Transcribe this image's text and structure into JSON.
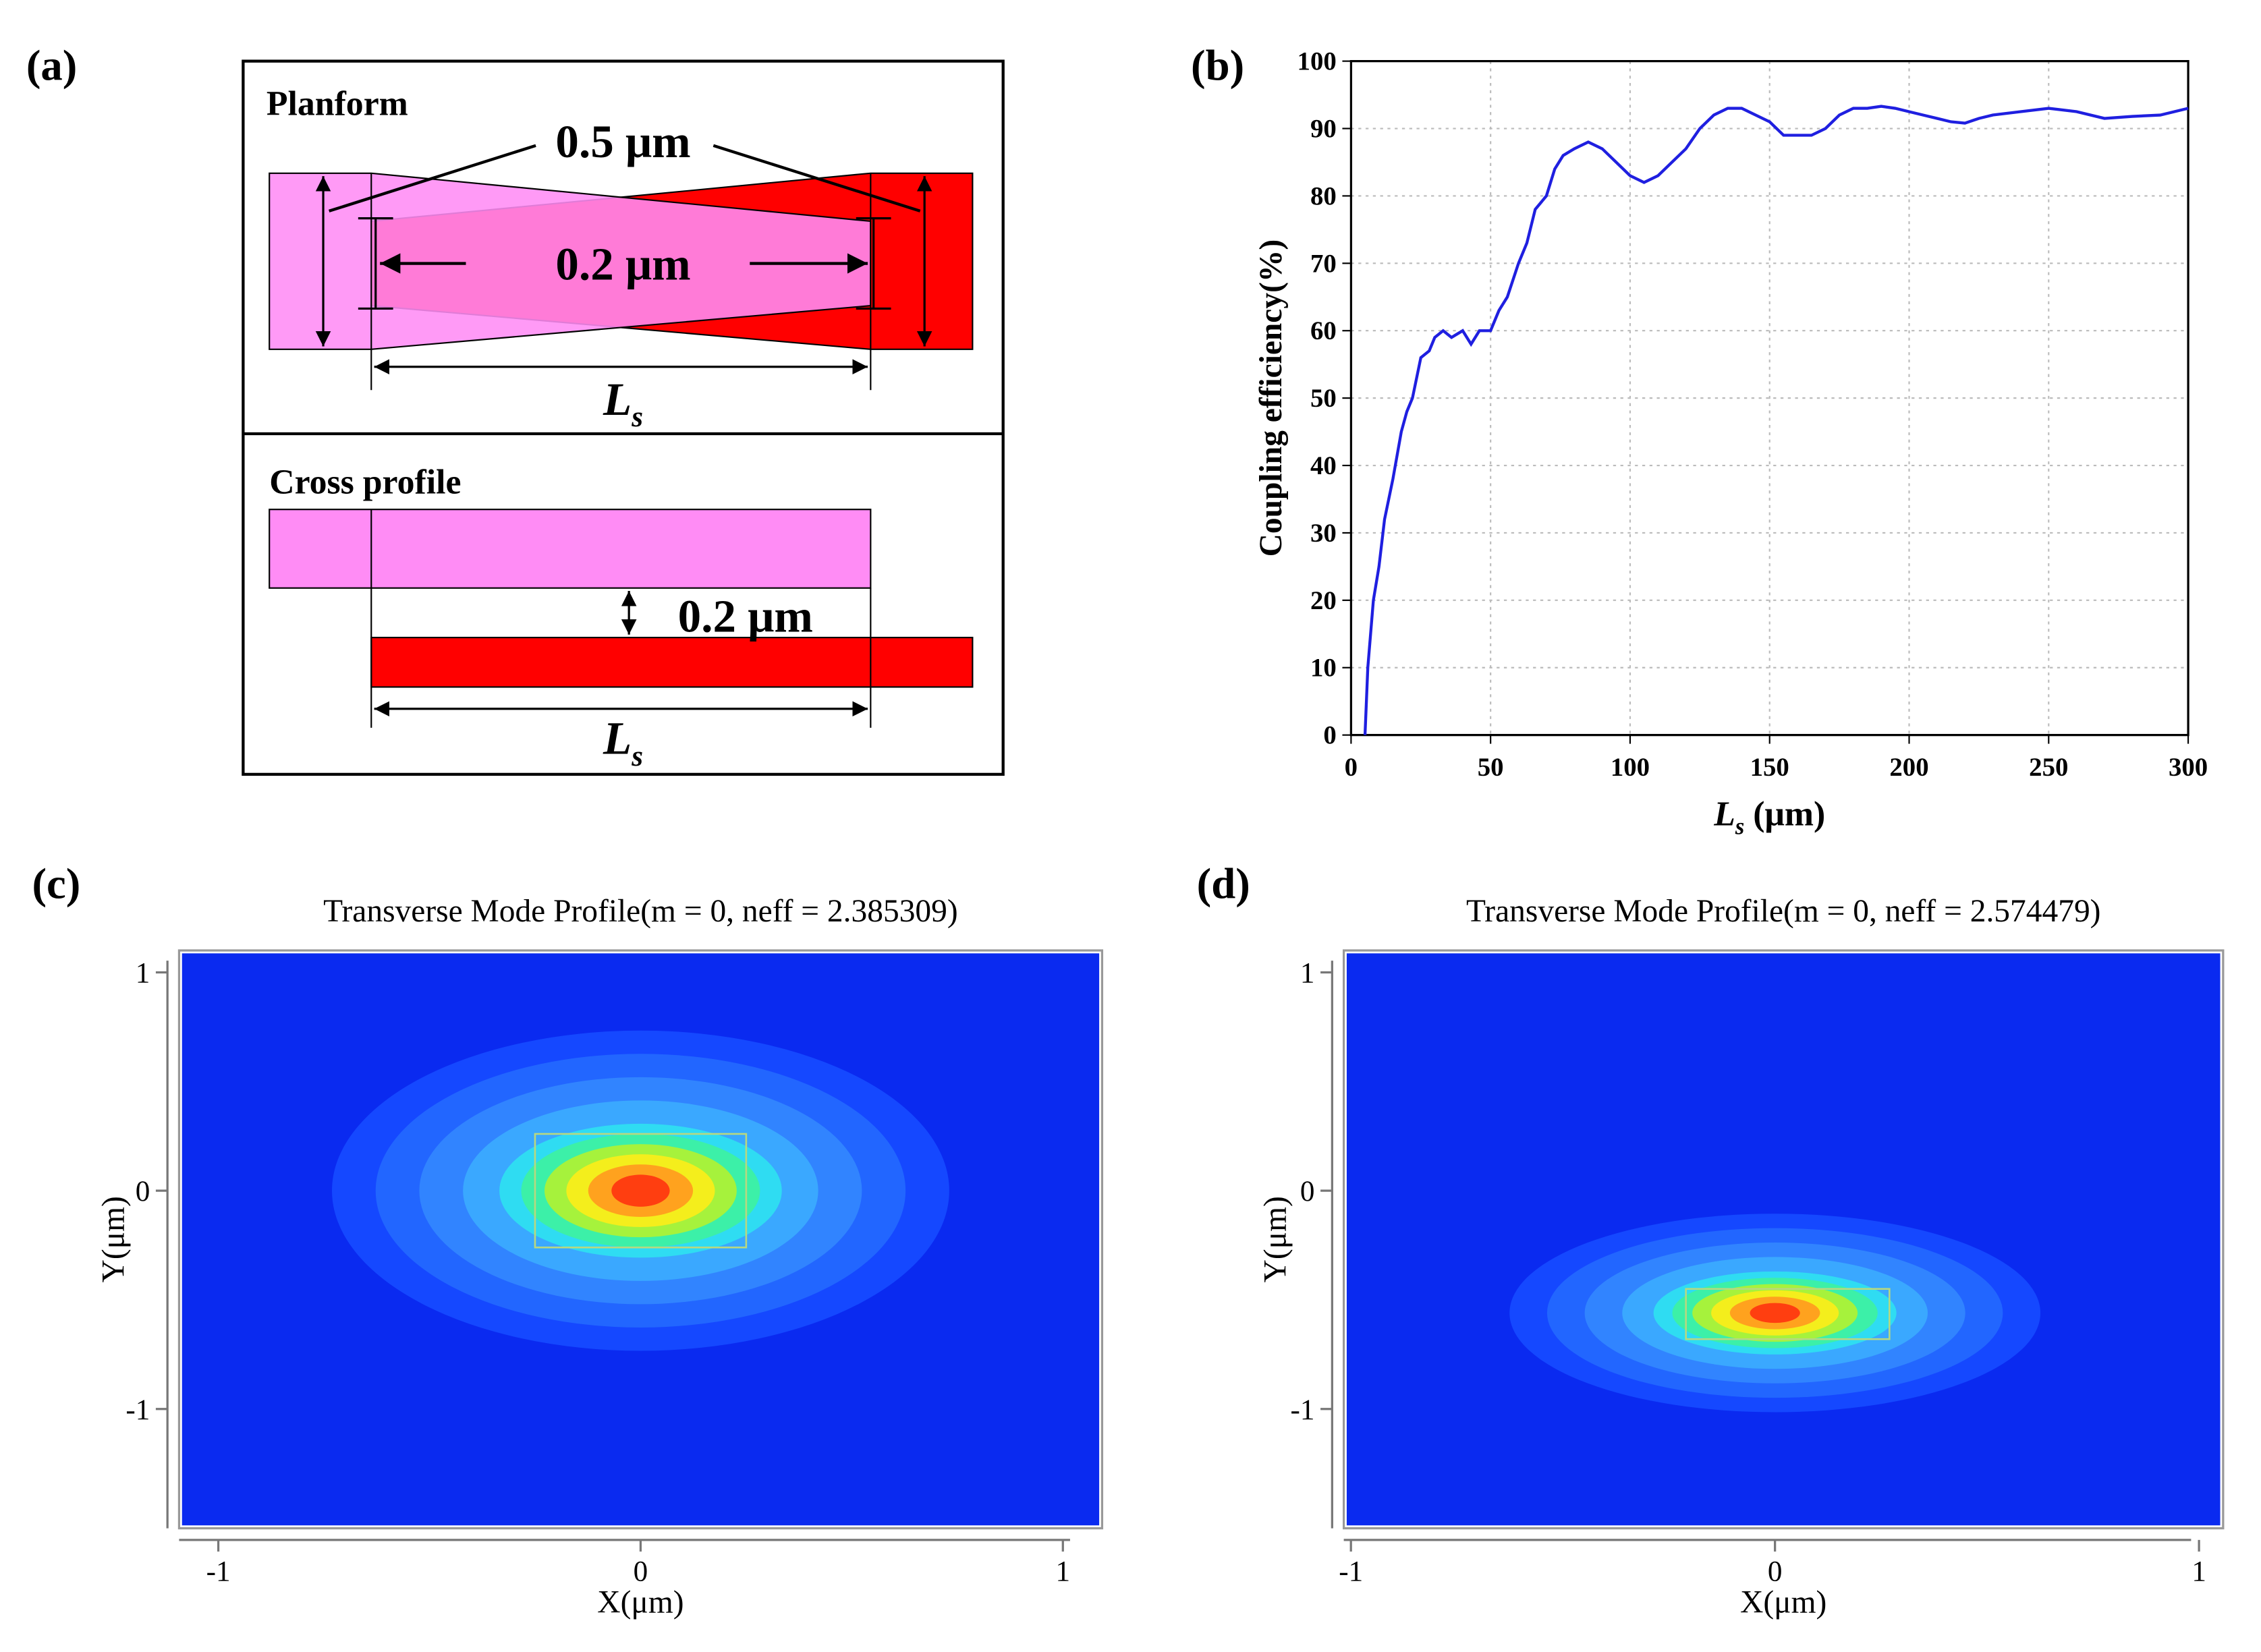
{
  "diagram": {
    "panel_label": "(a)",
    "planform": {
      "title": "Planform",
      "width_label": "0.5 μm",
      "tip_label": "0.2 μm",
      "length_label": {
        "main": "L",
        "sub": "s"
      }
    },
    "cross_profile": {
      "title": "Cross profile",
      "gap_label": "0.2 μm",
      "length_label": {
        "main": "L",
        "sub": "s"
      }
    }
  },
  "chart_data": [
    {
      "type": "line",
      "panel_label": "(b)",
      "y_label": "Coupling efficiency(%)",
      "x_label": {
        "main": "L",
        "sub": "s",
        "unit": "(μm)"
      },
      "xlim": [
        0,
        300
      ],
      "xticks": [
        0,
        50,
        100,
        150,
        200,
        250,
        300
      ],
      "ylim": [
        0,
        100
      ],
      "yticks": [
        0,
        10,
        20,
        30,
        40,
        50,
        60,
        70,
        80,
        90,
        100
      ],
      "grid": true,
      "series": [
        {
          "color": "#1f1fe0",
          "x": [
            5,
            6,
            8,
            10,
            12,
            15,
            18,
            20,
            22,
            25,
            28,
            30,
            33,
            36,
            40,
            43,
            46,
            50,
            53,
            56,
            60,
            63,
            66,
            70,
            73,
            76,
            80,
            85,
            90,
            95,
            100,
            105,
            110,
            115,
            120,
            125,
            130,
            135,
            140,
            145,
            150,
            155,
            160,
            165,
            170,
            175,
            180,
            185,
            190,
            195,
            200,
            205,
            210,
            215,
            220,
            225,
            230,
            240,
            250,
            260,
            270,
            280,
            290,
            300
          ],
          "values": [
            0,
            10,
            20,
            25,
            32,
            38,
            45,
            48,
            50,
            56,
            57,
            59,
            60,
            59,
            60,
            58,
            60,
            60,
            63,
            65,
            70,
            73,
            78,
            80,
            84,
            86,
            87,
            88,
            87,
            85,
            83,
            82,
            83,
            85,
            87,
            90,
            92,
            93,
            93,
            92,
            91,
            89,
            89,
            89,
            90,
            92,
            93,
            93,
            93.3,
            93,
            92.5,
            92,
            91.5,
            91,
            90.8,
            91.5,
            92,
            92.5,
            93,
            92.5,
            91.5,
            91.8,
            92,
            93
          ]
        }
      ]
    },
    {
      "type": "mode",
      "panel_label": "(c)",
      "title": "Transverse Mode Profile(m = 0, neff = 2.385309)",
      "x_label": "X(μm)",
      "y_label": "Y(μm)",
      "xlim": [
        -1.086,
        1.086
      ],
      "xticks": [
        -1,
        0,
        1
      ],
      "ylim": [
        -1.533,
        1.087
      ],
      "yticks": [
        -1,
        0,
        1
      ],
      "mode": {
        "x": 0,
        "y": 0
      },
      "waveguide": {
        "x": [
          -0.25,
          0.25
        ],
        "y": [
          -0.26,
          0.26
        ]
      }
    },
    {
      "type": "mode",
      "panel_label": "(d)",
      "title": "Transverse Mode Profile(m = 0, neff = 2.574479)",
      "x_label": "X(μm)",
      "y_label": "Y(μm)",
      "xlim": [
        -1.01,
        1.05
      ],
      "xticks": [
        -1,
        0,
        1
      ],
      "ylim": [
        -1.533,
        1.087
      ],
      "yticks": [
        -1,
        0,
        1
      ],
      "mode": {
        "x": 0,
        "y": -0.56
      },
      "waveguide": {
        "x": [
          -0.21,
          0.27
        ],
        "y": [
          -0.68,
          -0.45
        ]
      }
    }
  ]
}
